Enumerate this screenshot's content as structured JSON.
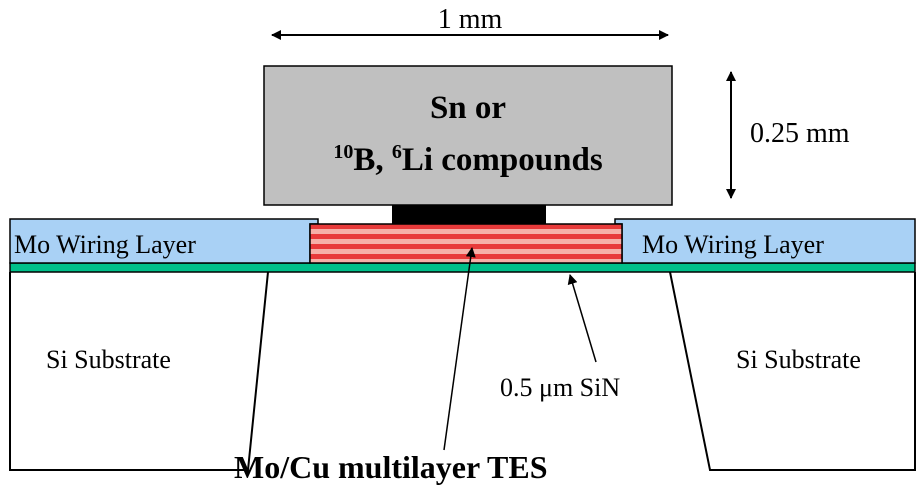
{
  "dimension_width": "1 mm",
  "dimension_height": "0.25 mm",
  "absorber": {
    "line1": "Sn or",
    "line2_part1_sup": "10",
    "line2_part2": "B, ",
    "line2_part3_sup": "6",
    "line2_part4": "Li compounds"
  },
  "wiring_left": "Mo Wiring Layer",
  "wiring_right": "Mo Wiring Layer",
  "substrate_left": "Si Substrate",
  "substrate_right": "Si Substrate",
  "sin_label": "0.5 μm SiN",
  "tes_label": "Mo/Cu multilayer TES",
  "colors": {
    "absorber": "#c0c0c0",
    "wiring": "#a9d1f5",
    "sin": "#00c08a",
    "tes_red": "#e83a3a",
    "tes_light": "#f6b0a8",
    "bond": "#000000"
  }
}
